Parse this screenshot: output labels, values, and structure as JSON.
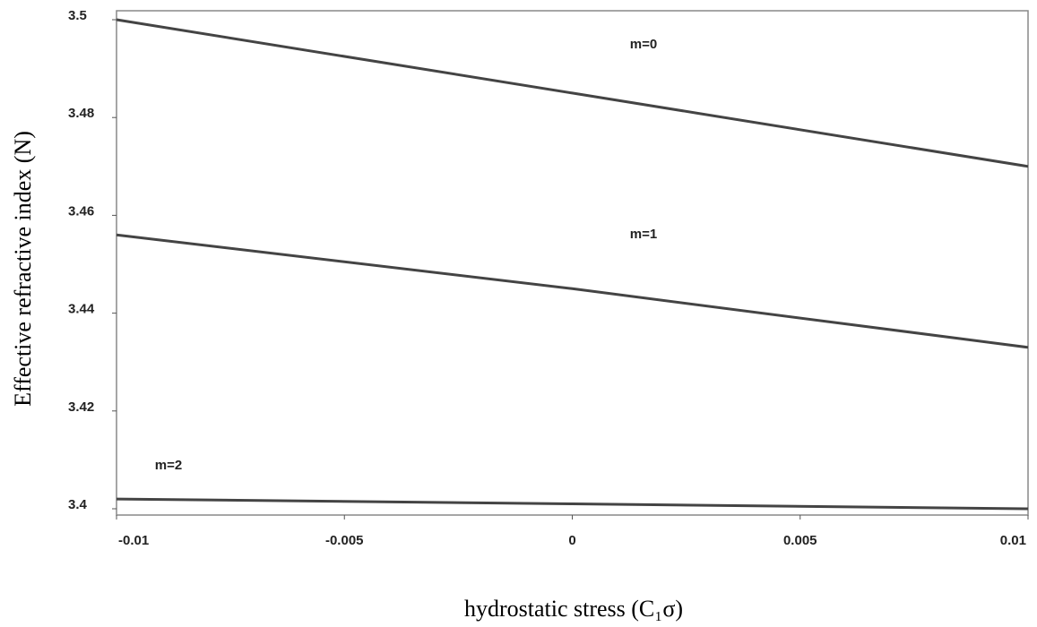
{
  "chart_data": {
    "type": "line",
    "x_label": "hydrostatic stress (C₁σ)",
    "y_label": "Effective refractive index (N)",
    "x": [
      -0.01,
      0,
      0.01
    ],
    "series": [
      {
        "name": "m=0",
        "color": "#444444",
        "values": [
          3.5,
          3.485,
          3.47
        ]
      },
      {
        "name": "m=1",
        "color": "#444444",
        "values": [
          3.456,
          3.445,
          3.433
        ]
      },
      {
        "name": "m=2",
        "color": "#444444",
        "values": [
          3.402,
          3.401,
          3.4
        ]
      }
    ],
    "xlim": [
      -0.01,
      0.01
    ],
    "xticks": [
      -0.01,
      -0.005,
      0,
      0.005,
      0.01
    ],
    "ylim": [
      3.4,
      3.5
    ],
    "yticks": [
      3.4,
      3.42,
      3.44,
      3.46,
      3.48,
      3.5
    ]
  }
}
